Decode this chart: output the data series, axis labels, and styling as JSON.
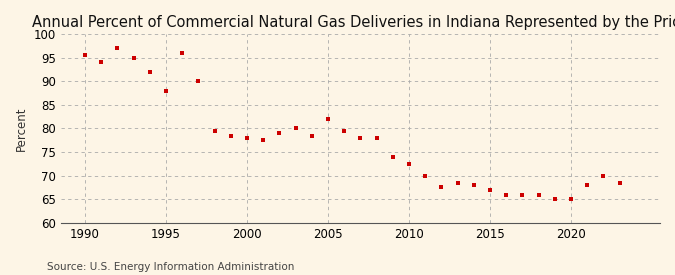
{
  "title": "Annual Percent of Commercial Natural Gas Deliveries in Indiana Represented by the Price",
  "ylabel": "Percent",
  "source": "Source: U.S. Energy Information Administration",
  "background_color": "#fdf5e6",
  "marker_color": "#cc0000",
  "years": [
    1990,
    1991,
    1992,
    1993,
    1994,
    1995,
    1996,
    1997,
    1998,
    1999,
    2000,
    2001,
    2002,
    2003,
    2004,
    2005,
    2006,
    2007,
    2008,
    2009,
    2010,
    2011,
    2012,
    2013,
    2014,
    2015,
    2016,
    2017,
    2018,
    2019,
    2020,
    2021,
    2022,
    2023
  ],
  "values": [
    95.5,
    94.0,
    97.0,
    95.0,
    92.0,
    88.0,
    96.0,
    90.0,
    79.5,
    78.5,
    78.0,
    77.5,
    79.0,
    80.0,
    78.5,
    82.0,
    79.5,
    78.0,
    78.0,
    74.0,
    72.5,
    70.0,
    67.5,
    68.5,
    68.0,
    67.0,
    66.0,
    66.0,
    66.0,
    65.0,
    65.0,
    68.0,
    70.0,
    68.5
  ],
  "ylim": [
    60,
    100
  ],
  "yticks": [
    60,
    65,
    70,
    75,
    80,
    85,
    90,
    95,
    100
  ],
  "xticks": [
    1990,
    1995,
    2000,
    2005,
    2010,
    2015,
    2020
  ],
  "grid_color": "#aaaaaa",
  "title_fontsize": 10.5,
  "label_fontsize": 8.5,
  "source_fontsize": 7.5
}
